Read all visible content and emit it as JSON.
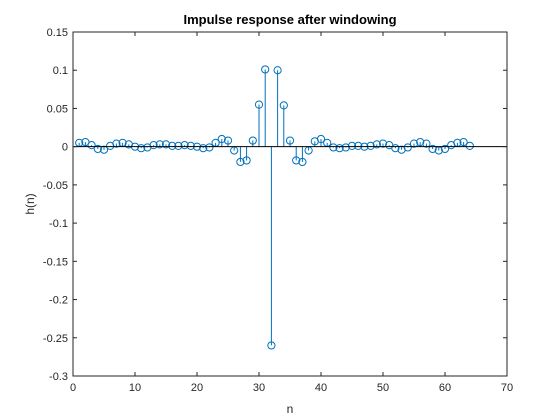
{
  "chart_data": {
    "type": "stem",
    "title": "Impulse response after windowing",
    "xlabel": "n",
    "ylabel": "h(n)",
    "xlim": [
      0,
      70
    ],
    "ylim": [
      -0.3,
      0.15
    ],
    "xticks": [
      "0",
      "10",
      "20",
      "30",
      "40",
      "50",
      "60",
      "70"
    ],
    "yticks": [
      "0.15",
      "0.1",
      "0.05",
      "0",
      "-0.05",
      "-0.1",
      "-0.15",
      "-0.2",
      "-0.25",
      "-0.3"
    ],
    "grid": false,
    "color": "#0072bd",
    "baseline_color": "#000000",
    "x": [
      1,
      2,
      3,
      4,
      5,
      6,
      7,
      8,
      9,
      10,
      11,
      12,
      13,
      14,
      15,
      16,
      17,
      18,
      19,
      20,
      21,
      22,
      23,
      24,
      25,
      26,
      27,
      28,
      29,
      30,
      31,
      32,
      33,
      34,
      35,
      36,
      37,
      38,
      39,
      40,
      41,
      42,
      43,
      44,
      45,
      46,
      47,
      48,
      49,
      50,
      51,
      52,
      53,
      54,
      55,
      56,
      57,
      58,
      59,
      60,
      61,
      62,
      63,
      64
    ],
    "values": [
      0.005,
      0.006,
      0.002,
      -0.003,
      -0.004,
      0.001,
      0.004,
      0.005,
      0.003,
      0.0,
      -0.002,
      -0.001,
      0.002,
      0.003,
      0.003,
      0.001,
      0.001,
      0.002,
      0.001,
      0.0,
      -0.002,
      -0.001,
      0.005,
      0.01,
      0.008,
      -0.005,
      -0.02,
      -0.018,
      0.008,
      0.055,
      0.101,
      -0.26,
      0.1,
      0.054,
      0.008,
      -0.018,
      -0.02,
      -0.005,
      0.007,
      0.01,
      0.005,
      -0.001,
      -0.002,
      -0.001,
      0.001,
      0.001,
      0.0,
      0.001,
      0.003,
      0.004,
      0.002,
      -0.002,
      -0.004,
      -0.001,
      0.004,
      0.006,
      0.004,
      -0.003,
      -0.005,
      -0.003,
      0.002,
      0.005,
      0.006,
      0.001
    ]
  }
}
